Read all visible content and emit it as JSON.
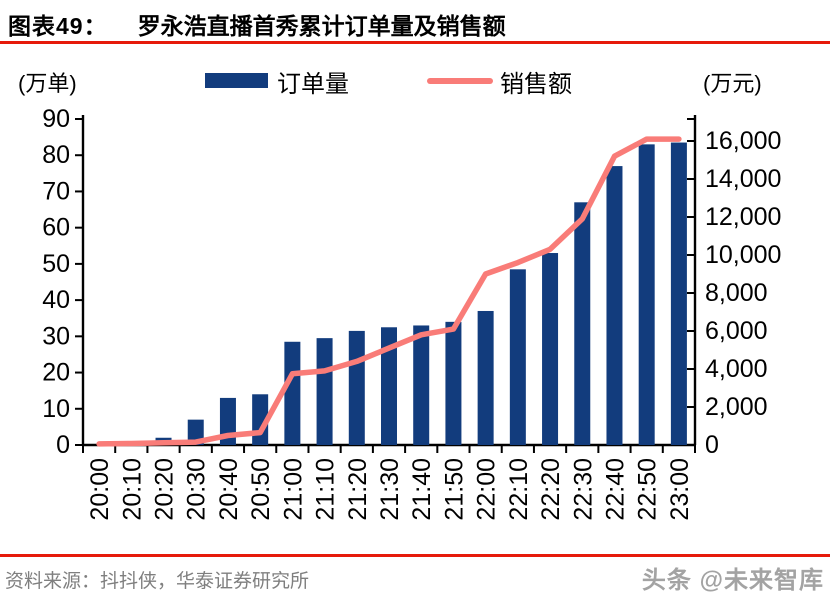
{
  "header": {
    "figure_label": "图表49：",
    "title": "罗永浩直播首秀累计订单量及销售额"
  },
  "footer": {
    "source": "资料来源：抖抖侠，华泰证券研究所",
    "watermark": "头条 @未来智库"
  },
  "colors": {
    "bar": "#123c7d",
    "line": "#f97c78",
    "accent_red": "#e61a0b",
    "axis": "#000000",
    "tick_text": "#000000",
    "source_text": "#7f7f7f",
    "watermark": "#a3a3a3"
  },
  "chart_data": {
    "type": "bar+line combo",
    "categories": [
      "20:00",
      "20:10",
      "20:20",
      "20:30",
      "20:40",
      "20:50",
      "21:00",
      "21:10",
      "21:20",
      "21:30",
      "21:40",
      "21:50",
      "22:00",
      "22:10",
      "22:20",
      "22:30",
      "22:40",
      "22:50",
      "23:00"
    ],
    "series": [
      {
        "name": "订单量",
        "type": "bar",
        "axis": "left",
        "unit": "万单",
        "values": [
          0,
          0,
          2,
          7,
          13,
          14,
          28.5,
          29.5,
          31.5,
          32.5,
          33,
          34,
          37,
          48.5,
          53,
          67,
          77,
          83,
          83.5
        ]
      },
      {
        "name": "销售额",
        "type": "line",
        "axis": "right",
        "unit": "万元",
        "values": [
          60,
          80,
          120,
          150,
          500,
          650,
          3750,
          3900,
          4400,
          5100,
          5800,
          6100,
          9000,
          9600,
          10300,
          11900,
          15200,
          16100,
          16100
        ]
      }
    ],
    "left_axis": {
      "unit": "(万单)",
      "min": 0,
      "max": 90,
      "step": 10,
      "tick_labels": [
        "0",
        "10",
        "20",
        "30",
        "40",
        "50",
        "60",
        "70",
        "80",
        "90"
      ]
    },
    "right_axis": {
      "unit": "(万元)",
      "min": 0,
      "max": 16000,
      "step": 2000,
      "tick_labels": [
        "0",
        "2,000",
        "4,000",
        "6,000",
        "8,000",
        "10,000",
        "12,000",
        "14,000",
        "16,000"
      ]
    },
    "grid": "off",
    "legend_position": "top"
  }
}
